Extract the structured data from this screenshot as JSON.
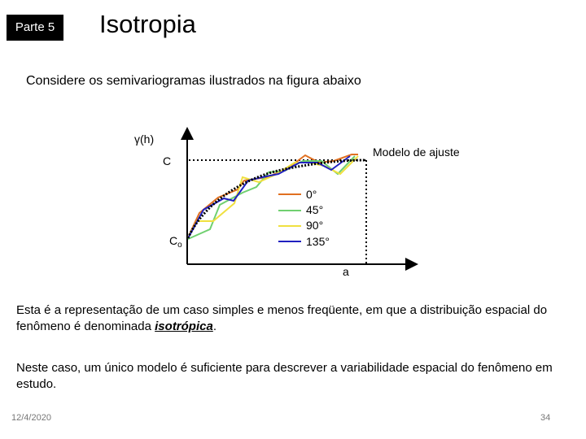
{
  "header": {
    "badge": "Parte 5",
    "title": "Isotropia"
  },
  "intro": "Considere os semivariogramas ilustrados na figura abaixo",
  "figure": {
    "y_label": "γ(h)",
    "model_label": "Modelo de ajuste",
    "sill_label": "C",
    "nugget_label": "C",
    "nugget_sub": "o",
    "range_label": "a",
    "legend": [
      "0°",
      "45°",
      "90°",
      "135°"
    ]
  },
  "paragraphs": [
    {
      "before": "Esta é a representação de um caso simples e menos freqüente, em que a distribuição espacial do fenômeno é denominada ",
      "emphasis": "isotrópica",
      "after": "."
    },
    {
      "text": "Neste caso, um único modelo é suficiente para descrever a variabilidade espacial do fenômeno em estudo."
    }
  ],
  "footer": {
    "date": "12/4/2020",
    "page": "34"
  }
}
